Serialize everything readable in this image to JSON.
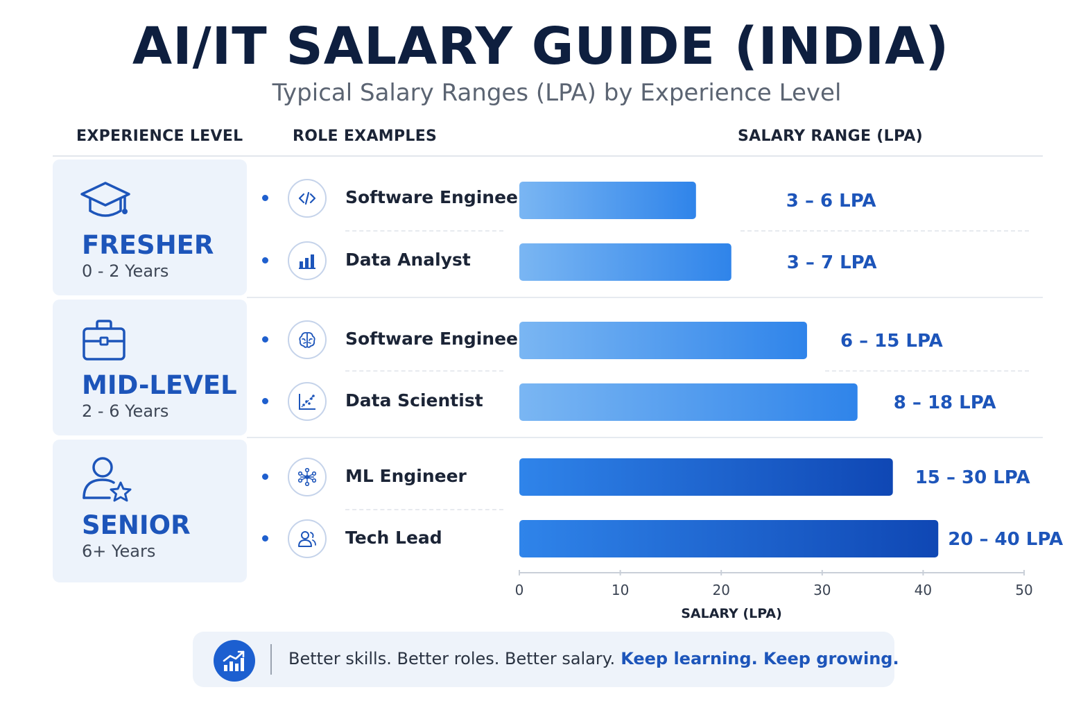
{
  "header": {
    "title": "AI/IT SALARY GUIDE (INDIA)",
    "subtitle": "Typical Salary Ranges (LPA) by Experience Level"
  },
  "columns": {
    "experience": "EXPERIENCE LEVEL",
    "roles": "ROLE EXAMPLES",
    "salary": "SALARY RANGE (LPA)"
  },
  "levels": [
    {
      "name": "FRESHER",
      "years": "0 - 2 Years",
      "icon": "graduation-cap-icon"
    },
    {
      "name": "MID-LEVEL",
      "years": "2 - 6 Years",
      "icon": "briefcase-icon"
    },
    {
      "name": "SENIOR",
      "years": "6+ Years",
      "icon": "user-star-icon"
    }
  ],
  "roles": [
    {
      "label": "Software Engineer",
      "icon": "code-icon"
    },
    {
      "label": "Data Analyst",
      "icon": "bar-chart-icon"
    },
    {
      "label": "Software Engineer",
      "icon": "brain-icon"
    },
    {
      "label": "Data Scientist",
      "icon": "scatter-plot-icon"
    },
    {
      "label": "ML Engineer",
      "icon": "network-icon"
    },
    {
      "label": "Tech Lead",
      "icon": "team-lead-icon"
    }
  ],
  "chart_data": {
    "type": "bar",
    "orientation": "horizontal",
    "categories": [
      "Software Engineer",
      "Data Analyst",
      "Software Engineer",
      "Data Scientist",
      "ML Engineer",
      "Tech Lead"
    ],
    "groups": [
      "FRESHER",
      "FRESHER",
      "MID-LEVEL",
      "MID-LEVEL",
      "SENIOR",
      "SENIOR"
    ],
    "ranges": [
      [
        3,
        6
      ],
      [
        3,
        7
      ],
      [
        6,
        15
      ],
      [
        8,
        18
      ],
      [
        15,
        30
      ],
      [
        20,
        40
      ]
    ],
    "values": [
      17.5,
      21,
      28.5,
      33.5,
      37,
      41.5
    ],
    "labels": [
      "3 – 6 LPA",
      "3 – 7 LPA",
      "6 – 15 LPA",
      "8 – 18 LPA",
      "15 – 30 LPA",
      "20 – 40 LPA"
    ],
    "xlabel": "SALARY (LPA)",
    "xlim": [
      0,
      50
    ],
    "xticks": [
      0,
      10,
      20,
      30,
      40,
      50
    ],
    "grid": false,
    "colors": {
      "bar_light": "#7ab6f3",
      "bar_mid": "#2f84ea",
      "bar_dark": "#0f47b4",
      "label": "#1d55ba",
      "axis": "#c9cfd8"
    }
  },
  "footer": {
    "icon": "growth-chart-icon",
    "text": "Better skills. Better roles. Better salary.",
    "emphasis": "Keep learning. Keep growing."
  }
}
